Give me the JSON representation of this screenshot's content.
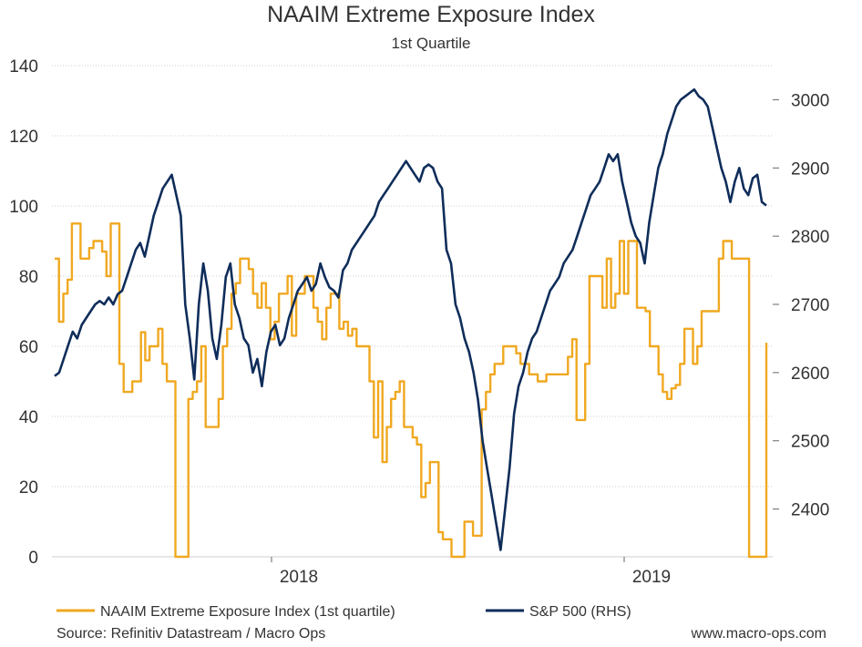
{
  "chart_data": {
    "type": "line",
    "title": "NAAIM Extreme Exposure Index",
    "subtitle": "1st Quartile",
    "x_labels": [
      "2018",
      "2019"
    ],
    "left_axis": {
      "ylim": [
        0,
        140
      ],
      "ticks": [
        0,
        20,
        40,
        60,
        80,
        100,
        120,
        140
      ]
    },
    "right_axis": {
      "ylim": [
        2330,
        3050
      ],
      "ticks": [
        2400,
        2500,
        2600,
        2700,
        2800,
        2900,
        3000
      ]
    },
    "grid": true,
    "legend_position": "bottom",
    "series": [
      {
        "name": "NAAIM Extreme Exposure Index (1st quartile)",
        "axis": "left",
        "color": "#f0a820",
        "step": true,
        "values": [
          85,
          67,
          75,
          79,
          95,
          95,
          85,
          85,
          88,
          90,
          90,
          87,
          80,
          95,
          95,
          55,
          47,
          47,
          50,
          50,
          64,
          56,
          60,
          60,
          65,
          55,
          50,
          50,
          0,
          0,
          0,
          45,
          47,
          50,
          60,
          37,
          37,
          37,
          45,
          60,
          65,
          75,
          78,
          85,
          85,
          82,
          75,
          71,
          78,
          71,
          62,
          67,
          75,
          75,
          80,
          63,
          75,
          75,
          80,
          80,
          71,
          67,
          62,
          71,
          75,
          75,
          65,
          67,
          63,
          65,
          60,
          60,
          60,
          50,
          34,
          50,
          27,
          37,
          45,
          47,
          50,
          37,
          37,
          34,
          32,
          17,
          21,
          27,
          27,
          7,
          5,
          5,
          0,
          0,
          0,
          10,
          10,
          6,
          6,
          42,
          47,
          52,
          55,
          55,
          60,
          60,
          60,
          58,
          55,
          55,
          52,
          52,
          50,
          50,
          52,
          52,
          52,
          52,
          52,
          57,
          62,
          39,
          39,
          55,
          80,
          80,
          80,
          71,
          85,
          71,
          75,
          90,
          75,
          90,
          90,
          71,
          71,
          70,
          60,
          60,
          52,
          47,
          45,
          48,
          49,
          55,
          65,
          65,
          55,
          60,
          70,
          70,
          70,
          70,
          85,
          90,
          90,
          85,
          85,
          85,
          85,
          0,
          0,
          0,
          0,
          61
        ],
        "note": "weekly values, full x-range left to right"
      },
      {
        "name": "S&P 500 (RHS)",
        "axis": "right",
        "color": "#0f2d5a",
        "values": [
          2595,
          2600,
          2620,
          2640,
          2660,
          2650,
          2670,
          2680,
          2690,
          2700,
          2705,
          2700,
          2710,
          2700,
          2715,
          2720,
          2740,
          2760,
          2780,
          2790,
          2770,
          2800,
          2830,
          2850,
          2870,
          2880,
          2890,
          2860,
          2830,
          2700,
          2650,
          2590,
          2700,
          2760,
          2720,
          2650,
          2620,
          2670,
          2740,
          2760,
          2700,
          2680,
          2650,
          2640,
          2600,
          2620,
          2580,
          2630,
          2660,
          2670,
          2640,
          2650,
          2680,
          2700,
          2720,
          2730,
          2740,
          2720,
          2730,
          2760,
          2740,
          2725,
          2720,
          2710,
          2750,
          2760,
          2780,
          2790,
          2800,
          2810,
          2820,
          2830,
          2850,
          2860,
          2870,
          2880,
          2890,
          2900,
          2910,
          2900,
          2890,
          2880,
          2900,
          2905,
          2900,
          2880,
          2870,
          2780,
          2760,
          2700,
          2680,
          2650,
          2630,
          2600,
          2560,
          2500,
          2460,
          2420,
          2380,
          2340,
          2400,
          2460,
          2540,
          2580,
          2600,
          2630,
          2650,
          2660,
          2680,
          2700,
          2720,
          2730,
          2740,
          2760,
          2770,
          2780,
          2800,
          2820,
          2840,
          2860,
          2870,
          2880,
          2900,
          2920,
          2910,
          2920,
          2880,
          2850,
          2820,
          2800,
          2790,
          2760,
          2820,
          2860,
          2900,
          2920,
          2950,
          2970,
          2990,
          3000,
          3005,
          3010,
          3015,
          3005,
          3000,
          2990,
          2960,
          2930,
          2900,
          2880,
          2850,
          2880,
          2900,
          2870,
          2860,
          2885,
          2890,
          2850,
          2845
        ],
        "note": "weekly values, full x-range left to right"
      }
    ],
    "footer": {
      "source": "Source: Refinitiv Datastream / Macro Ops",
      "website": "www.macro-ops.com"
    }
  }
}
